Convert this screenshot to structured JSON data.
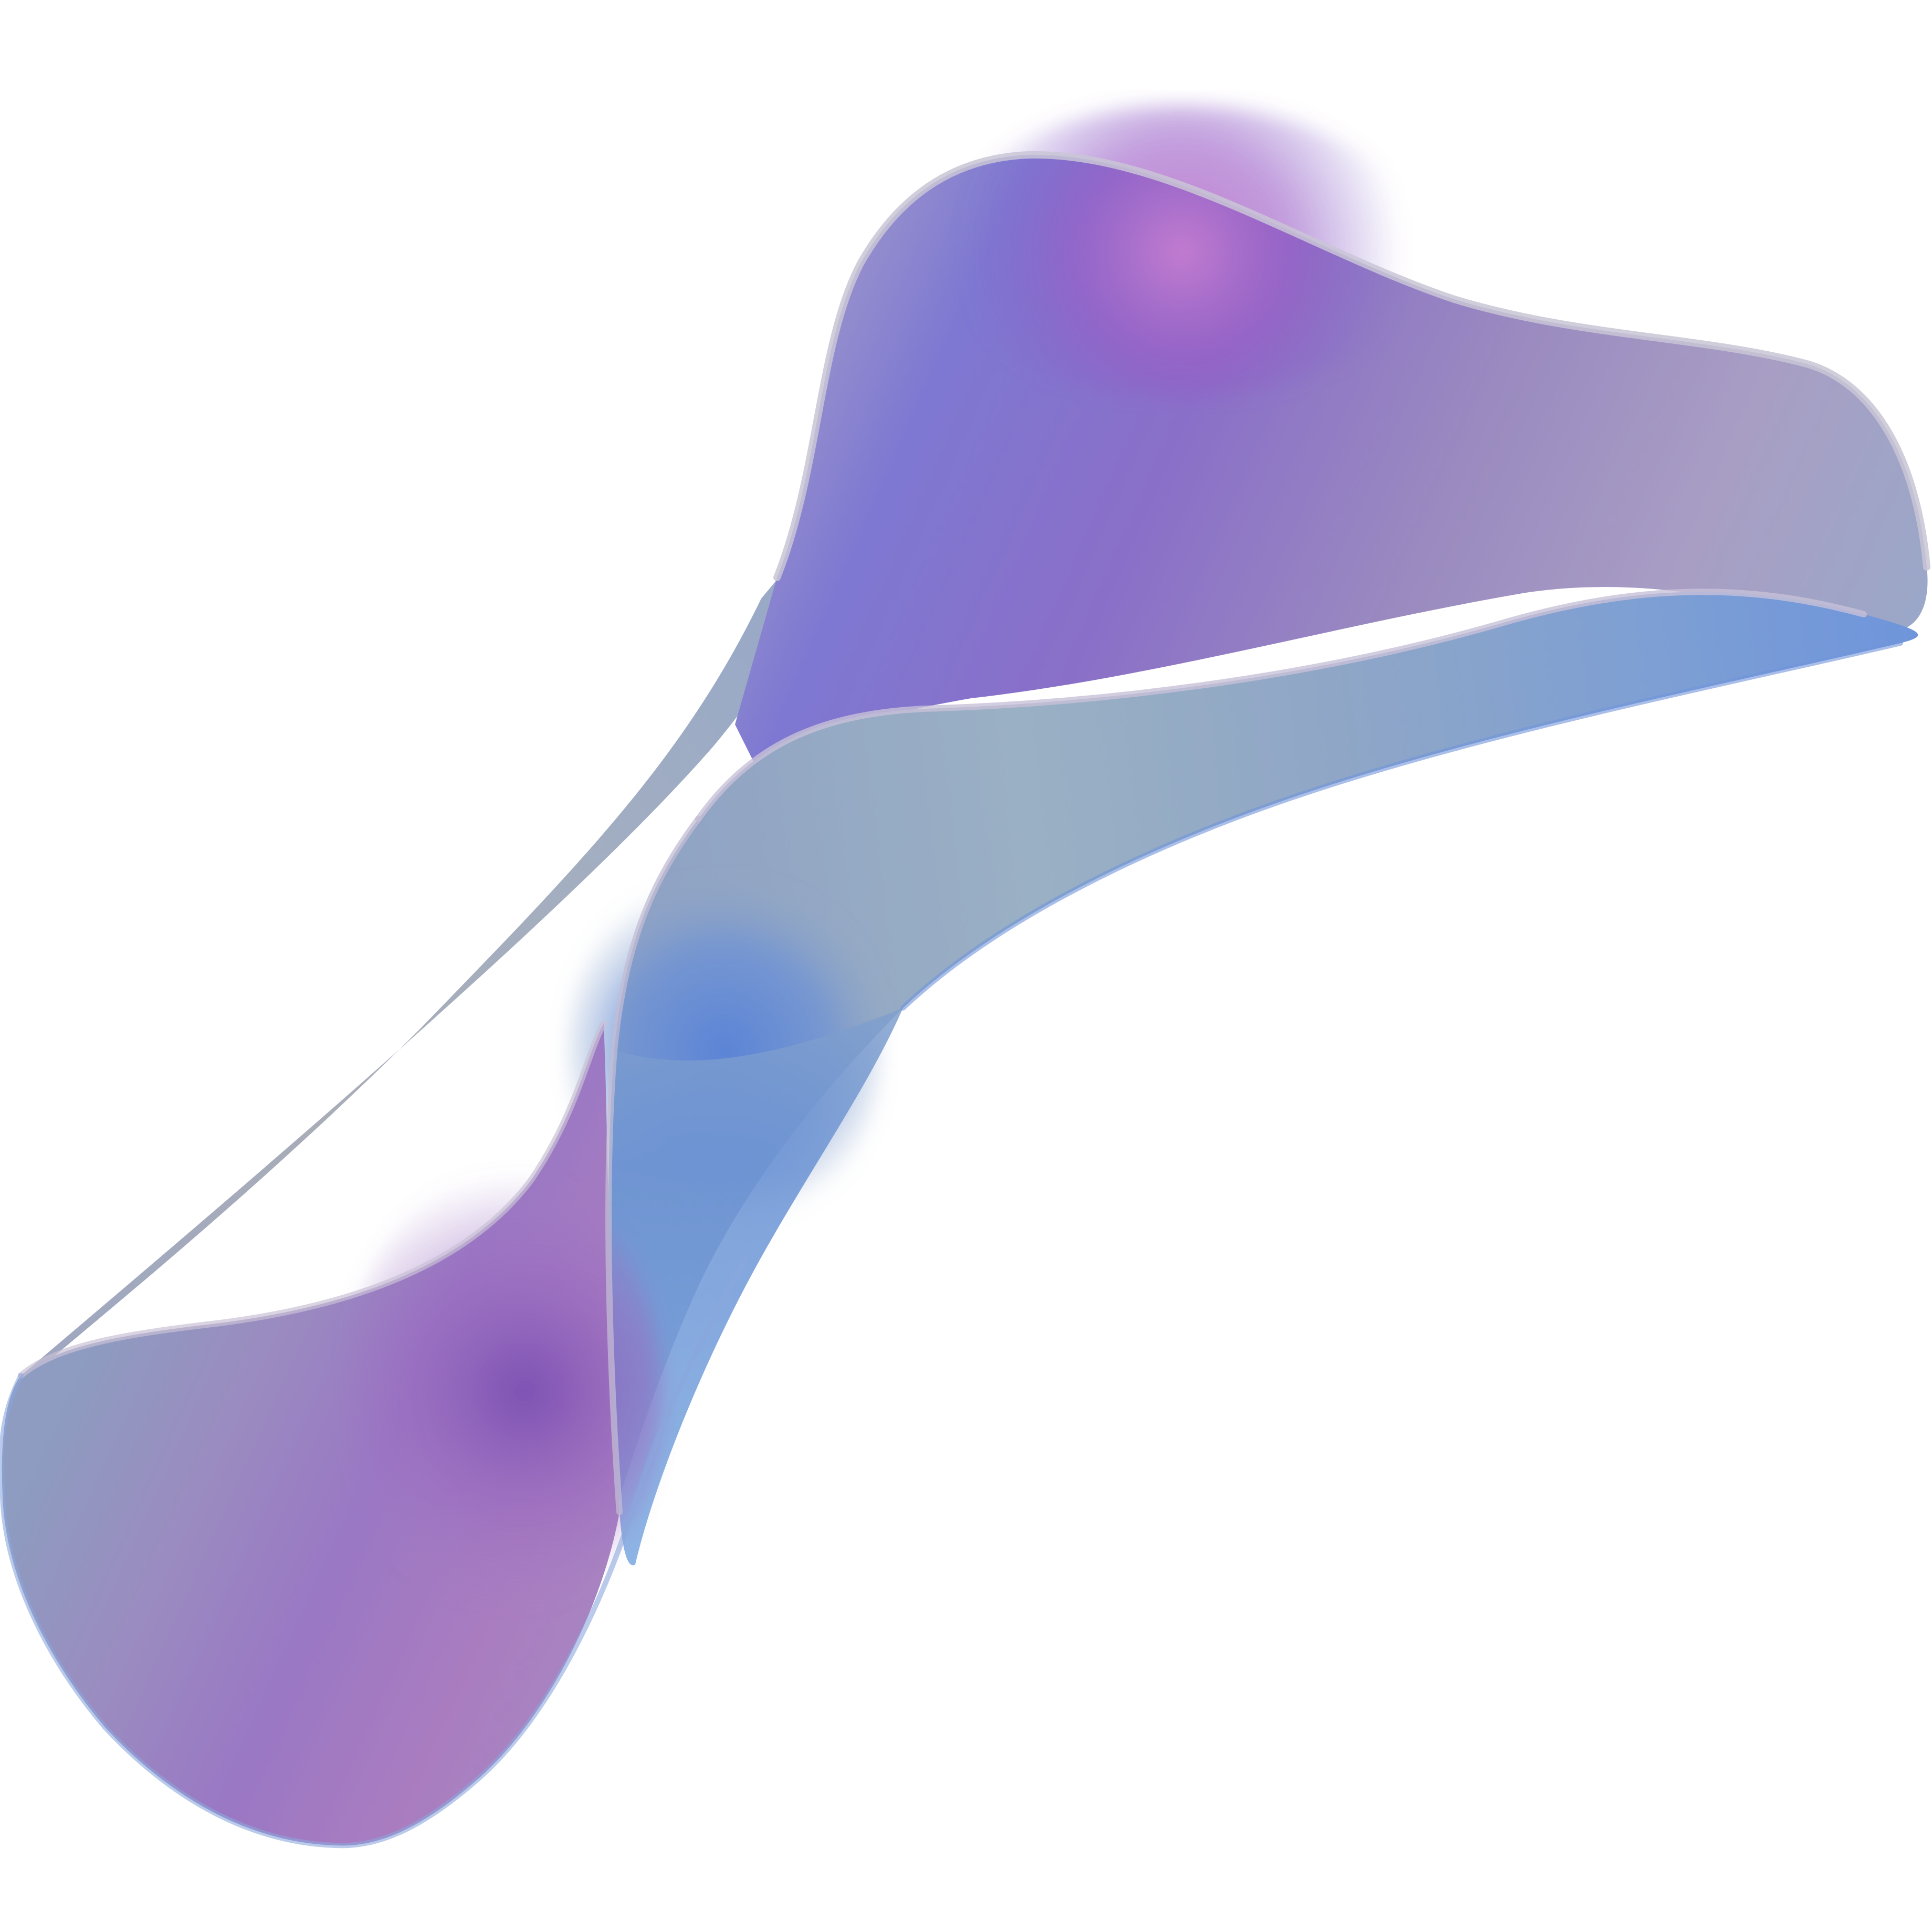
{
  "scene": {
    "subject": "iridescent-twisted-ribbon",
    "background_color": "#ffffff",
    "palette": {
      "violet": "#7e5fd0",
      "magenta": "#b06bc8",
      "deep_purple": "#6a3fb5",
      "blue": "#5f87d8",
      "sky_blue": "#7aa8e0",
      "silver": "#a8b2be",
      "pale_lilac": "#c8b6d8",
      "edge_highlight": "#c9c6d6"
    }
  }
}
